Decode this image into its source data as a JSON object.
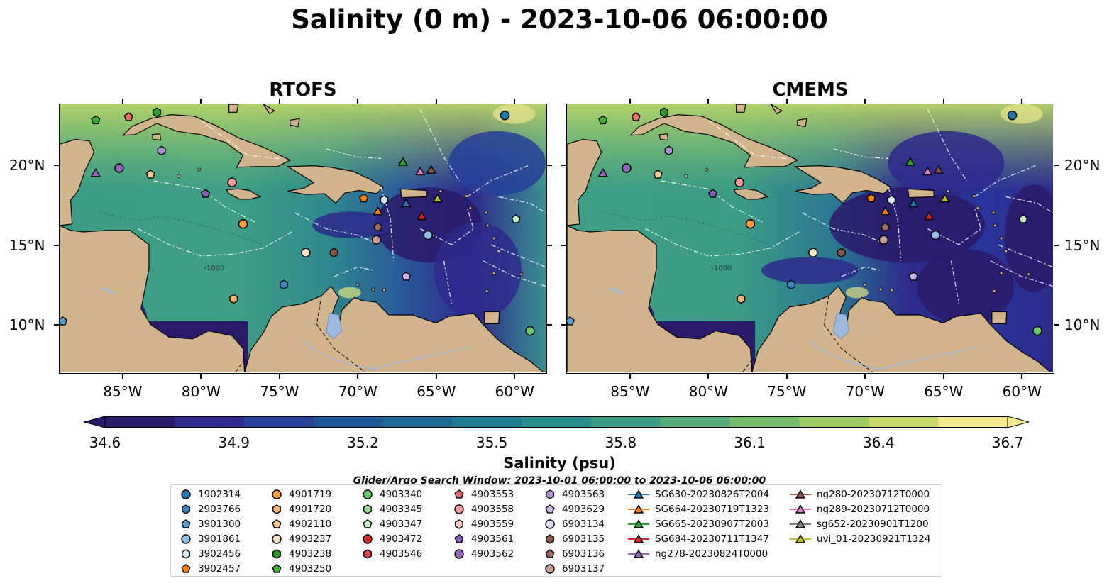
{
  "title": "Salinity (0 m) - 2023-10-06 06:00:00",
  "panels": [
    {
      "title": "RTOFS"
    },
    {
      "title": "CMEMS"
    }
  ],
  "lon_ticks": [
    "85°W",
    "80°W",
    "75°W",
    "70°W",
    "65°W",
    "60°W"
  ],
  "lon_values": [
    -85,
    -80,
    -75,
    -70,
    -65,
    -60
  ],
  "lat_ticks": [
    "20°N",
    "15°N",
    "10°N"
  ],
  "lat_values": [
    20,
    15,
    10
  ],
  "extent": {
    "lon": [
      -89,
      -58
    ],
    "lat": [
      7,
      23.8
    ]
  },
  "contour_label": "-1000",
  "colorbar": {
    "label": "Salinity (psu)",
    "min": 34.6,
    "max": 36.7,
    "ticks": [
      "34.6",
      "34.9",
      "35.2",
      "35.5",
      "35.8",
      "36.1",
      "36.4",
      "36.7"
    ],
    "colors": [
      "#2a1a6a",
      "#2d2a8c",
      "#27409a",
      "#1f569a",
      "#1b6a96",
      "#1d7c92",
      "#288d8c",
      "#3b9d84",
      "#55ad79",
      "#75bd6c",
      "#9dcb64",
      "#c7d868",
      "#f4e98e"
    ]
  },
  "search_window": "Glider/Argo Search Window: 2023-10-01 06:00:00 to 2023-10-06 06:00:00",
  "legend": [
    {
      "label": "1902314",
      "marker": "circle",
      "color": "#1f77b4"
    },
    {
      "label": "2903766",
      "marker": "hexagon",
      "color": "#3a86c0"
    },
    {
      "label": "3901300",
      "marker": "pentagon",
      "color": "#5a9fd4"
    },
    {
      "label": "3901861",
      "marker": "circle",
      "color": "#8fbfe6"
    },
    {
      "label": "3902456",
      "marker": "hexagon",
      "color": "#d5e9f8"
    },
    {
      "label": "3902457",
      "marker": "pentagon",
      "color": "#ff7f0e"
    },
    {
      "label": "4901719",
      "marker": "circle",
      "color": "#ff9a3c"
    },
    {
      "label": "4901720",
      "marker": "hexagon",
      "color": "#ffb374"
    },
    {
      "label": "4902110",
      "marker": "pentagon",
      "color": "#ffcb99"
    },
    {
      "label": "4903237",
      "marker": "circle",
      "color": "#ffe3c6"
    },
    {
      "label": "4903238",
      "marker": "hexagon",
      "color": "#2ca02c"
    },
    {
      "label": "4903250",
      "marker": "pentagon",
      "color": "#3cb43c"
    },
    {
      "label": "4903340",
      "marker": "circle",
      "color": "#6cc66c"
    },
    {
      "label": "4903345",
      "marker": "hexagon",
      "color": "#98dc98"
    },
    {
      "label": "4903347",
      "marker": "pentagon",
      "color": "#c8eec8"
    },
    {
      "label": "4903472",
      "marker": "circle",
      "color": "#d62728"
    },
    {
      "label": "4903546",
      "marker": "hexagon",
      "color": "#e04548"
    },
    {
      "label": "4903553",
      "marker": "pentagon",
      "color": "#ea6b6c"
    },
    {
      "label": "4903558",
      "marker": "circle",
      "color": "#f39a9a"
    },
    {
      "label": "4903559",
      "marker": "hexagon",
      "color": "#fac5c5"
    },
    {
      "label": "4903561",
      "marker": "pentagon",
      "color": "#8a5cbf"
    },
    {
      "label": "4903562",
      "marker": "circle",
      "color": "#9467bd"
    },
    {
      "label": "4903563",
      "marker": "hexagon",
      "color": "#b08ed4"
    },
    {
      "label": "4903629",
      "marker": "pentagon",
      "color": "#cfb6ea"
    },
    {
      "label": "6903134",
      "marker": "circle",
      "color": "#e6d8f6"
    },
    {
      "label": "6903135",
      "marker": "hexagon",
      "color": "#8c564b"
    },
    {
      "label": "6903136",
      "marker": "pentagon",
      "color": "#a06a5e"
    },
    {
      "label": "6903137",
      "marker": "circle",
      "color": "#c49a8e"
    },
    {
      "label": "SG630-20230826T2004",
      "marker": "triangle",
      "color": "#1f77b4"
    },
    {
      "label": "SG664-20230719T1323",
      "marker": "triangle",
      "color": "#ff7f0e"
    },
    {
      "label": "SG665-20230907T2003",
      "marker": "triangle",
      "color": "#2ca02c"
    },
    {
      "label": "SG684-20230711T1347",
      "marker": "triangle",
      "color": "#d62728"
    },
    {
      "label": "ng278-20230824T0000",
      "marker": "triangle",
      "color": "#9467bd"
    },
    {
      "label": "ng280-20230712T0000",
      "marker": "triangle",
      "color": "#8c564b"
    },
    {
      "label": "ng289-20230712T0000",
      "marker": "triangle",
      "color": "#e377c2"
    },
    {
      "label": "sg652-20230901T1200",
      "marker": "triangle",
      "color": "#7f7f7f"
    },
    {
      "label": "uvi_01-20230921T1324",
      "marker": "triangle",
      "color": "#bcbd22"
    }
  ],
  "observations": [
    {
      "id": "1902314",
      "lon": -60.6,
      "lat": 23.1
    },
    {
      "id": "2903766",
      "lon": -74.7,
      "lat": 12.5
    },
    {
      "id": "3901300",
      "lon": -88.8,
      "lat": 10.2
    },
    {
      "id": "3901861",
      "lon": -65.5,
      "lat": 15.6
    },
    {
      "id": "3902456",
      "lon": -68.3,
      "lat": 17.8
    },
    {
      "id": "3902457",
      "lon": -69.6,
      "lat": 17.9
    },
    {
      "id": "4901719",
      "lon": -77.3,
      "lat": 16.3
    },
    {
      "id": "4901720",
      "lon": -77.9,
      "lat": 11.6
    },
    {
      "id": "4902110",
      "lon": -83.2,
      "lat": 19.4
    },
    {
      "id": "4903237",
      "lon": -73.3,
      "lat": 14.5
    },
    {
      "id": "4903238",
      "lon": -82.8,
      "lat": 23.3
    },
    {
      "id": "4903250",
      "lon": -86.7,
      "lat": 22.8
    },
    {
      "id": "4903340",
      "lon": -59.0,
      "lat": 9.6
    },
    {
      "id": "4903347",
      "lon": -59.9,
      "lat": 16.6
    },
    {
      "id": "4903553",
      "lon": -84.6,
      "lat": 23.0
    },
    {
      "id": "4903558",
      "lon": -78.0,
      "lat": 18.9
    },
    {
      "id": "4903561",
      "lon": -79.7,
      "lat": 18.2
    },
    {
      "id": "4903562",
      "lon": -85.2,
      "lat": 19.8
    },
    {
      "id": "4903563",
      "lon": -82.5,
      "lat": 20.9
    },
    {
      "id": "4903629",
      "lon": -66.9,
      "lat": 13.0
    },
    {
      "id": "6903135",
      "lon": -71.5,
      "lat": 14.5
    },
    {
      "id": "6903136",
      "lon": -68.7,
      "lat": 16.1
    },
    {
      "id": "6903137",
      "lon": -68.8,
      "lat": 15.3
    },
    {
      "id": "SG630-20230826T2004",
      "lon": -66.9,
      "lat": 17.6
    },
    {
      "id": "SG664-20230719T1323",
      "lon": -68.7,
      "lat": 17.1
    },
    {
      "id": "SG665-20230907T2003",
      "lon": -67.1,
      "lat": 20.2
    },
    {
      "id": "SG684-20230711T1347",
      "lon": -65.9,
      "lat": 16.8
    },
    {
      "id": "ng278-20230824T0000",
      "lon": -86.7,
      "lat": 19.5
    },
    {
      "id": "ng280-20230712T0000",
      "lon": -65.3,
      "lat": 19.7
    },
    {
      "id": "ng289-20230712T0000",
      "lon": -66.0,
      "lat": 19.6
    },
    {
      "id": "uvi_01-20230921T1324",
      "lon": -64.9,
      "lat": 17.9
    }
  ]
}
